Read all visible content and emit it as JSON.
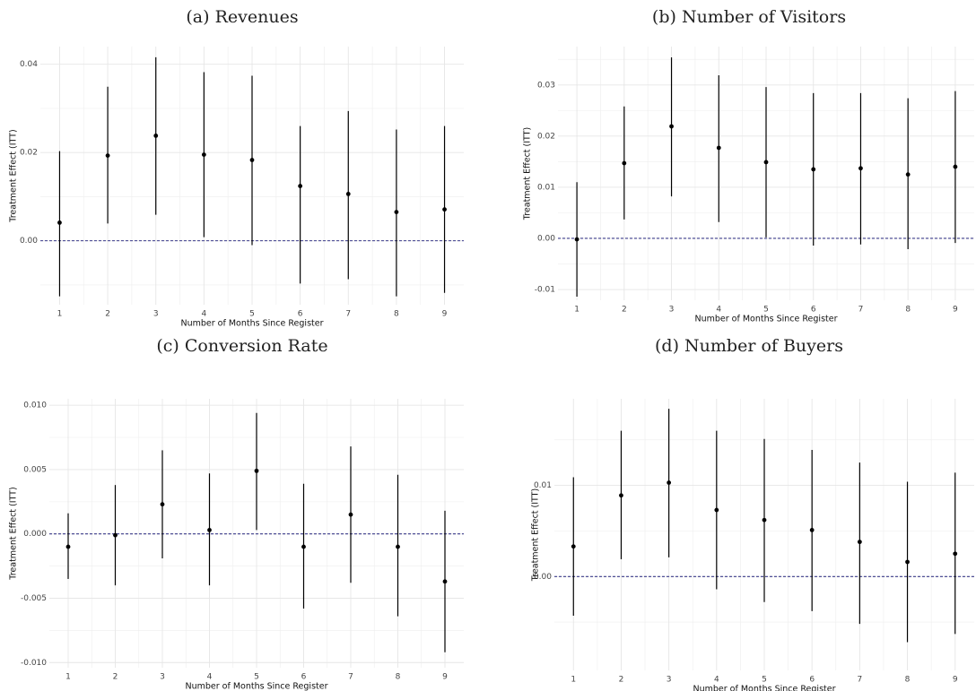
{
  "chart_data": [
    {
      "type": "errorbar",
      "title": "(a) Revenues",
      "x_label": "Number of Months Since Register",
      "y_label": "Treatment Effect (ITT)",
      "x": [
        1,
        2,
        3,
        4,
        5,
        6,
        7,
        8,
        9
      ],
      "values": [
        0.0041,
        0.0193,
        0.0238,
        0.0195,
        0.0183,
        0.0124,
        0.0106,
        0.0065,
        0.0071
      ],
      "lower": [
        -0.0126,
        0.0039,
        0.0059,
        0.0008,
        -0.001,
        -0.0097,
        -0.0087,
        -0.0126,
        -0.0118
      ],
      "upper": [
        0.0203,
        0.0349,
        0.0416,
        0.0382,
        0.0374,
        0.026,
        0.0294,
        0.0252,
        0.026
      ],
      "xlim": [
        0.6,
        9.4
      ],
      "xticks": [
        1,
        2,
        3,
        4,
        5,
        6,
        7,
        8,
        9
      ],
      "ylim": [
        -0.0145,
        0.044
      ],
      "yticks": [
        {
          "value": 0,
          "label": "0.00"
        },
        0.02,
        0.04
      ],
      "hline": 0,
      "hline_color": "#3c3c8c",
      "color": "#000000",
      "grid": true
    },
    {
      "type": "errorbar",
      "title": "(b) Number of Visitors",
      "x_label": "Number of Months Since Register",
      "y_label": "Treatment Effect (ITT)",
      "x": [
        1,
        2,
        3,
        4,
        5,
        6,
        7,
        8,
        9
      ],
      "values": [
        -0.0002,
        0.0147,
        0.0219,
        0.0177,
        0.0149,
        0.0135,
        0.0137,
        0.0125,
        0.014
      ],
      "lower": [
        -0.0114,
        0.0037,
        0.0082,
        0.0032,
        0.0002,
        -0.0014,
        -0.0012,
        -0.0021,
        -0.0009
      ],
      "upper": [
        0.011,
        0.0258,
        0.0354,
        0.0319,
        0.0296,
        0.0284,
        0.0284,
        0.0274,
        0.0288
      ],
      "xlim": [
        0.6,
        9.4
      ],
      "xticks": [
        1,
        2,
        3,
        4,
        5,
        6,
        7,
        8,
        9
      ],
      "ylim": [
        -0.0121,
        0.0375
      ],
      "yticks": [
        -0.01,
        {
          "value": 0,
          "label": "0.00"
        },
        0.01,
        0.02,
        0.03
      ],
      "hline": 0,
      "hline_color": "#3c3c8c",
      "color": "#000000",
      "grid": true
    },
    {
      "type": "errorbar",
      "title": "(c) Conversion Rate",
      "x_label": "Number of Months Since Register",
      "y_label": "Treatment Effect (ITT)",
      "x": [
        1,
        2,
        3,
        4,
        5,
        6,
        7,
        8,
        9
      ],
      "values": [
        -0.001,
        -0.0001,
        0.0023,
        0.0003,
        0.0049,
        -0.001,
        0.0015,
        -0.001,
        -0.0037
      ],
      "lower": [
        -0.0035,
        -0.004,
        -0.0019,
        -0.004,
        0.0003,
        -0.0058,
        -0.0038,
        -0.0064,
        -0.0092
      ],
      "upper": [
        0.0016,
        0.0038,
        0.0065,
        0.0047,
        0.0094,
        0.0039,
        0.0068,
        0.0046,
        0.0018
      ],
      "xlim": [
        0.6,
        9.4
      ],
      "xticks": [
        1,
        2,
        3,
        4,
        5,
        6,
        7,
        8,
        9
      ],
      "ylim": [
        -0.0104,
        0.0105
      ],
      "yticks": [
        {
          "value": -0.01,
          "label": "-0.010"
        },
        -0.005,
        {
          "value": 0,
          "label": "0.000"
        },
        0.005,
        {
          "value": 0.01,
          "label": "0.010"
        }
      ],
      "hline": 0,
      "hline_color": "#3c3c8c",
      "color": "#000000",
      "grid": true
    },
    {
      "type": "errorbar",
      "title": "(d) Number of Buyers",
      "x_label": "Number of Months Since Register",
      "y_label": "Treatment Effect (ITT)",
      "x": [
        1,
        2,
        3,
        4,
        5,
        6,
        7,
        8,
        9
      ],
      "values": [
        0.0033,
        0.0089,
        0.0103,
        0.0073,
        0.0062,
        0.0051,
        0.0038,
        0.0016,
        0.0025
      ],
      "lower": [
        -0.0043,
        0.0019,
        0.0021,
        -0.0014,
        -0.0028,
        -0.0038,
        -0.0052,
        -0.0072,
        -0.0063
      ],
      "upper": [
        0.0109,
        0.016,
        0.0184,
        0.016,
        0.0151,
        0.0139,
        0.0125,
        0.0104,
        0.0114
      ],
      "xlim": [
        0.6,
        9.4
      ],
      "xticks": [
        1,
        2,
        3,
        4,
        5,
        6,
        7,
        8,
        9
      ],
      "ylim": [
        -0.0103,
        0.0195
      ],
      "yticks": [
        {
          "value": 0,
          "label": "0.00"
        },
        0.01
      ],
      "hline": 0,
      "hline_color": "#3c3c8c",
      "color": "#000000",
      "grid": true
    }
  ]
}
